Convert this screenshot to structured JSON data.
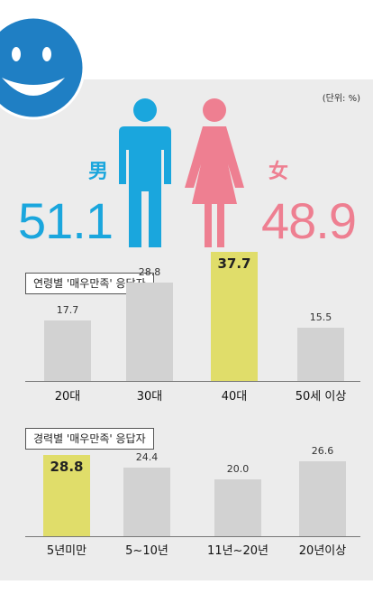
{
  "gender": {
    "unit": "(단위: %)",
    "male_char": "男",
    "female_char": "女",
    "male_pct": "51.1",
    "female_pct": "48.9",
    "male_color": "#1aa6dd",
    "female_color": "#ee7f91"
  },
  "icons": [
    "smiley-icon",
    "male-figure-icon",
    "female-figure-icon"
  ],
  "chart_data": [
    {
      "type": "bar",
      "title": "연령별 '매우만족' 응답자",
      "categories": [
        "20대",
        "30대",
        "40대",
        "50세 이상"
      ],
      "values": [
        17.7,
        28.8,
        37.7,
        15.5
      ],
      "value_labels": [
        "17.7",
        "28.8",
        "37.7",
        "15.5"
      ],
      "highlight_index": 2,
      "ylim": [
        0,
        40
      ]
    },
    {
      "type": "bar",
      "title": "경력별 '매우만족' 응답자",
      "categories": [
        "5년미만",
        "5~10년",
        "11년~20년",
        "20년이상"
      ],
      "values": [
        28.8,
        24.4,
        20.0,
        26.6
      ],
      "value_labels": [
        "28.8",
        "24.4",
        "20.0",
        "26.6"
      ],
      "highlight_index": 0,
      "ylim": [
        0,
        30
      ]
    }
  ],
  "colors": {
    "bar": "#d2d2d2",
    "highlight": "#e0dd6a",
    "panel": "#ececec"
  }
}
